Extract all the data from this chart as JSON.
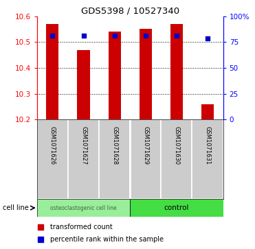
{
  "title": "GDS5398 / 10527340",
  "samples": [
    "GSM1071626",
    "GSM1071627",
    "GSM1071628",
    "GSM1071629",
    "GSM1071630",
    "GSM1071631"
  ],
  "bar_values": [
    10.57,
    10.47,
    10.54,
    10.55,
    10.57,
    10.26
  ],
  "percentile_values": [
    10.525,
    10.525,
    10.525,
    10.525,
    10.525,
    10.515
  ],
  "y_min": 10.2,
  "y_max": 10.6,
  "y_ticks_left": [
    10.2,
    10.3,
    10.4,
    10.5,
    10.6
  ],
  "y_ticks_right": [
    0,
    25,
    50,
    75,
    100
  ],
  "bar_color": "#cc0000",
  "dot_color": "#0000cc",
  "group1_label": "osteoclastogenic cell line",
  "group1_color": "#99ee99",
  "group2_label": "control",
  "group2_color": "#44dd44",
  "cell_line_label": "cell line",
  "legend_bar_label": "transformed count",
  "legend_dot_label": "percentile rank within the sample",
  "grid_color": "#000000",
  "background_color": "#ffffff",
  "label_area_color": "#cccccc"
}
